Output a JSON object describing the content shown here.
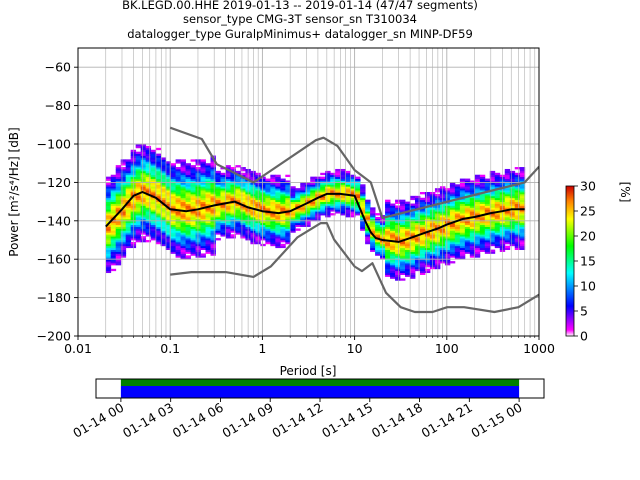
{
  "title": {
    "line1": "BK.LEGD.00.HHE   2019-01-13 -- 2019-01-14  (47/47 segments)",
    "line2": "sensor_type CMG-3T sensor_sn T310034",
    "line3": "datalogger_type GuralpMinimus+ datalogger_sn MINP-DF59"
  },
  "chart_data": [
    {
      "type": "heatmap",
      "xlabel": "Period [s]",
      "ylabel": "Power [m²/s⁴/Hz] [dB]",
      "xscale": "log",
      "xlim": [
        0.01,
        1000
      ],
      "ylim": [
        -200,
        -50
      ],
      "x_ticks": [
        0.01,
        0.1,
        1,
        10,
        100,
        1000
      ],
      "x_tick_labels": [
        "0.01",
        "0.1",
        "1",
        "10",
        "100",
        "1000"
      ],
      "y_ticks": [
        -200,
        -180,
        -160,
        -140,
        -120,
        -100,
        -80,
        -60
      ],
      "y_tick_labels": [
        "−200",
        "−180",
        "−160",
        "−140",
        "−120",
        "−100",
        "−80",
        "−60"
      ],
      "grid": true,
      "colorbar": {
        "label": "[%]",
        "range": [
          0,
          30
        ],
        "ticks": [
          0,
          5,
          10,
          15,
          20,
          25,
          30
        ],
        "tick_labels": [
          "0",
          "5",
          "10",
          "15",
          "20",
          "25",
          "30"
        ],
        "colors": [
          "#ffffff",
          "#ff00ff",
          "#0000ff",
          "#00ffff",
          "#00ff00",
          "#ffff00",
          "#ff8000",
          "#cc0000"
        ]
      },
      "series": [
        {
          "name": "",
          "color": "#000000",
          "x": [
            0.02,
            0.03,
            0.04,
            0.05,
            0.07,
            0.1,
            0.15,
            0.2,
            0.3,
            0.5,
            0.7,
            1,
            1.5,
            2,
            3,
            4,
            5,
            7,
            10,
            13,
            15,
            17,
            20,
            30,
            40,
            60,
            80,
            100,
            150,
            200,
            300,
            400,
            500,
            700
          ],
          "y": [
            -143,
            -134,
            -127,
            -125,
            -128,
            -134,
            -135,
            -134,
            -132,
            -130,
            -133,
            -135,
            -136,
            -135,
            -131,
            -128,
            -126,
            -126,
            -127,
            -140,
            -146,
            -149,
            -150,
            -151,
            -149,
            -146,
            -144,
            -142,
            -139,
            -138,
            -136,
            -135,
            -134,
            -134
          ]
        },
        {
          "name": "",
          "color": "#666666",
          "x": [
            0.1,
            0.22,
            0.32,
            0.8,
            3.8,
            4.6,
            6.5,
            10,
            15,
            20,
            700,
            1000
          ],
          "y": [
            -91.5,
            -97.4,
            -110.5,
            -120.0,
            -98.0,
            -96.7,
            -101.0,
            -113.6,
            -120.0,
            -138.5,
            -120.0,
            -111.9
          ]
        },
        {
          "name": "",
          "color": "#666666",
          "x": [
            0.1,
            0.17,
            0.4,
            0.8,
            1.24,
            2.4,
            4.3,
            5.0,
            6.0,
            10,
            12,
            15.6,
            21.9,
            31.6,
            45,
            70,
            101,
            154,
            328,
            600,
            1000
          ],
          "y": [
            -168,
            -166.7,
            -166.7,
            -169.2,
            -163.7,
            -148.6,
            -141.2,
            -141.2,
            -149.8,
            -163.8,
            -166.2,
            -162.1,
            -177.5,
            -185.0,
            -187.5,
            -187.5,
            -185.0,
            -185.0,
            -187.5,
            -185.0,
            -178.5
          ]
        }
      ]
    },
    {
      "type": "bar",
      "x_tick_labels": [
        "01-14 00",
        "01-14 03",
        "01-14 06",
        "01-14 09",
        "01-14 12",
        "01-14 15",
        "01-14 18",
        "01-14 21",
        "01-15 00"
      ],
      "x_range_hours": [
        -1.5,
        25.5
      ],
      "data_coverage_hours": [
        0,
        24
      ],
      "colors": [
        "#008000",
        "#0000ff"
      ]
    }
  ]
}
